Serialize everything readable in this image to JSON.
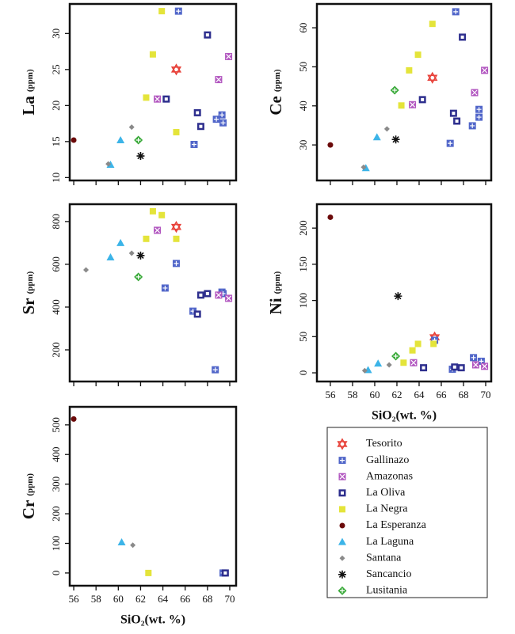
{
  "chart_data": [
    {
      "type": "scatter",
      "ylabel": "La",
      "ylabel_unit": "(ppm)",
      "xlim": [
        55.64,
        70.57
      ],
      "ylim": [
        9.6,
        34.1
      ],
      "xticks": [
        56,
        58,
        60,
        62,
        64,
        66,
        68,
        70
      ],
      "yticks": [
        10,
        15,
        20,
        25,
        30
      ],
      "xtick_labels": false,
      "series": [
        {
          "name": "Tesorito",
          "color": "#e8423a",
          "marker": "hexagram",
          "x": [
            65.2
          ],
          "values": [
            25
          ]
        },
        {
          "name": "Gallinazo",
          "color": "#5166c9",
          "marker": "square-plus",
          "x": [
            65.4,
            66.8,
            68.8,
            69.3,
            69.4
          ],
          "values": [
            33.1,
            14.6,
            18.1,
            18.7,
            17.6
          ]
        },
        {
          "name": "Amazonas",
          "color": "#b257c0",
          "marker": "square-x",
          "x": [
            63.5,
            69.0,
            69.9
          ],
          "values": [
            20.9,
            23.6,
            26.8
          ]
        },
        {
          "name": "La Oliva",
          "color": "#2e2f8e",
          "marker": "square-open",
          "x": [
            64.3,
            67.1,
            67.4,
            68.0
          ],
          "values": [
            20.9,
            19.0,
            17.1,
            29.8
          ]
        },
        {
          "name": "La Negra",
          "color": "#e4e43a",
          "marker": "square",
          "x": [
            63.9,
            63.1,
            62.5,
            65.2
          ],
          "values": [
            33.1,
            27.1,
            21.1,
            16.3
          ]
        },
        {
          "name": "La Esperanza",
          "color": "#6b0a0a",
          "marker": "circle",
          "x": [
            56.0
          ],
          "values": [
            15.2
          ]
        },
        {
          "name": "La Laguna",
          "color": "#3cb4e8",
          "marker": "triangle",
          "x": [
            60.2,
            59.3
          ],
          "values": [
            15.2,
            11.8
          ]
        },
        {
          "name": "Santana",
          "color": "#8a8a8a",
          "marker": "diamond",
          "x": [
            61.2,
            59.1
          ],
          "values": [
            17.0,
            11.9
          ]
        },
        {
          "name": "Sancancio",
          "color": "#111111",
          "marker": "asterisk",
          "x": [
            62.0
          ],
          "values": [
            13.0
          ]
        },
        {
          "name": "Lusitania",
          "color": "#3aaa3a",
          "marker": "diamond-plus",
          "x": [
            61.8
          ],
          "values": [
            15.2
          ]
        }
      ]
    },
    {
      "type": "scatter",
      "ylabel": "Ce",
      "ylabel_unit": "(ppm)",
      "xlim": [
        54.79,
        70.5
      ],
      "ylim": [
        20.9,
        66.1
      ],
      "xticks": [
        56,
        58,
        60,
        62,
        64,
        66,
        68,
        70
      ],
      "yticks": [
        30,
        40,
        50,
        60
      ],
      "xtick_labels": false,
      "series": [
        {
          "x": [
            65.2
          ],
          "values": [
            47.2
          ]
        },
        {
          "x": [
            67.3,
            66.8,
            68.8,
            69.4,
            69.4
          ],
          "values": [
            64.1,
            30.4,
            34.9,
            39.1,
            37.1
          ]
        },
        {
          "x": [
            63.4,
            69.0,
            69.9
          ],
          "values": [
            40.3,
            43.4,
            49.1
          ]
        },
        {
          "x": [
            64.3,
            67.1,
            67.4,
            67.9
          ],
          "values": [
            41.6,
            38.1,
            36.1,
            57.6
          ]
        },
        {
          "x": [
            65.2,
            63.9,
            63.1,
            62.4
          ],
          "values": [
            61.0,
            53.1,
            49.1,
            40.1
          ]
        },
        {
          "x": [
            56.0
          ],
          "values": [
            30.0
          ]
        },
        {
          "x": [
            60.2,
            59.2
          ],
          "values": [
            32.0,
            24.1
          ]
        },
        {
          "x": [
            61.1,
            59.0
          ],
          "values": [
            34.1,
            24.3
          ]
        },
        {
          "x": [
            61.9
          ],
          "values": [
            31.4
          ]
        },
        {
          "x": [
            61.8
          ],
          "values": [
            44.0
          ]
        }
      ]
    },
    {
      "type": "scatter",
      "ylabel": "Sr",
      "ylabel_unit": "(ppm)",
      "xlim": [
        55.64,
        70.57
      ],
      "ylim": [
        52,
        881
      ],
      "xticks": [
        56,
        58,
        60,
        62,
        64,
        66,
        68,
        70
      ],
      "yticks": [
        200,
        400,
        600,
        800
      ],
      "xtick_labels": false,
      "series": [
        {
          "x": [
            65.2
          ],
          "values": [
            775
          ]
        },
        {
          "x": [
            65.2,
            64.2,
            66.7,
            69.3,
            69.4,
            68.7
          ],
          "values": [
            604,
            489,
            381,
            470,
            463,
            107
          ]
        },
        {
          "x": [
            63.5,
            69.0,
            69.9
          ],
          "values": [
            759,
            456,
            441
          ]
        },
        {
          "x": [
            67.4,
            68.0,
            67.1
          ],
          "values": [
            456,
            463,
            367
          ]
        },
        {
          "x": [
            63.1,
            63.9,
            62.5,
            65.2
          ],
          "values": [
            848,
            830,
            719,
            719
          ]
        },
        {
          "x": [],
          "values": []
        },
        {
          "x": [
            60.2,
            59.3
          ],
          "values": [
            700,
            633
          ]
        },
        {
          "x": [
            61.2,
            57.1
          ],
          "values": [
            652,
            574
          ]
        },
        {
          "x": [
            62.0
          ],
          "values": [
            641
          ]
        },
        {
          "x": [
            61.8
          ],
          "values": [
            541
          ]
        }
      ]
    },
    {
      "type": "scatter",
      "ylabel": "Ni",
      "ylabel_unit": "(ppm)",
      "xlabel": "SiO₂(wt. %)",
      "xlim": [
        54.79,
        70.5
      ],
      "ylim": [
        -12,
        233
      ],
      "xticks": [
        56,
        58,
        60,
        62,
        64,
        66,
        68,
        70
      ],
      "yticks": [
        0,
        50,
        100,
        150,
        200
      ],
      "xtick_labels": true,
      "series": [
        {
          "x": [
            65.4
          ],
          "values": [
            49
          ]
        },
        {
          "x": [
            65.4,
            68.9,
            69.6,
            67.0
          ],
          "values": [
            45,
            21,
            16,
            5
          ]
        },
        {
          "x": [
            63.5,
            69.1,
            69.9
          ],
          "values": [
            14,
            11,
            9
          ]
        },
        {
          "x": [
            67.2,
            67.8,
            64.4
          ],
          "values": [
            8,
            7,
            7
          ]
        },
        {
          "x": [
            63.4,
            63.9,
            62.6,
            65.3
          ],
          "values": [
            31,
            40,
            14,
            40
          ]
        },
        {
          "x": [
            56.0
          ],
          "values": [
            215
          ]
        },
        {
          "x": [
            60.3,
            59.4
          ],
          "values": [
            13,
            4
          ]
        },
        {
          "x": [
            61.3,
            59.1
          ],
          "values": [
            11,
            3
          ]
        },
        {
          "x": [
            62.1
          ],
          "values": [
            106
          ]
        },
        {
          "x": [
            61.9
          ],
          "values": [
            23
          ]
        }
      ]
    },
    {
      "type": "scatter",
      "ylabel": "Cr",
      "ylabel_unit": "(ppm)",
      "xlabel": "SiO₂(wt. %)",
      "xlim": [
        55.64,
        70.57
      ],
      "ylim": [
        -43,
        561
      ],
      "xticks": [
        56,
        58,
        60,
        62,
        64,
        66,
        68,
        70
      ],
      "yticks": [
        0,
        100,
        200,
        300,
        400,
        500
      ],
      "xtick_labels": true,
      "series": [
        {
          "x": [],
          "values": []
        },
        {
          "x": [
            69.4
          ],
          "values": [
            0
          ]
        },
        {
          "x": [],
          "values": []
        },
        {
          "x": [
            69.6
          ],
          "values": [
            0
          ]
        },
        {
          "x": [
            62.7
          ],
          "values": [
            0
          ]
        },
        {
          "x": [
            56.0
          ],
          "values": [
            520
          ]
        },
        {
          "x": [
            60.3
          ],
          "values": [
            104
          ]
        },
        {
          "x": [
            61.3
          ],
          "values": [
            94
          ]
        },
        {
          "x": [],
          "values": []
        },
        {
          "x": [],
          "values": []
        }
      ]
    }
  ]
}
